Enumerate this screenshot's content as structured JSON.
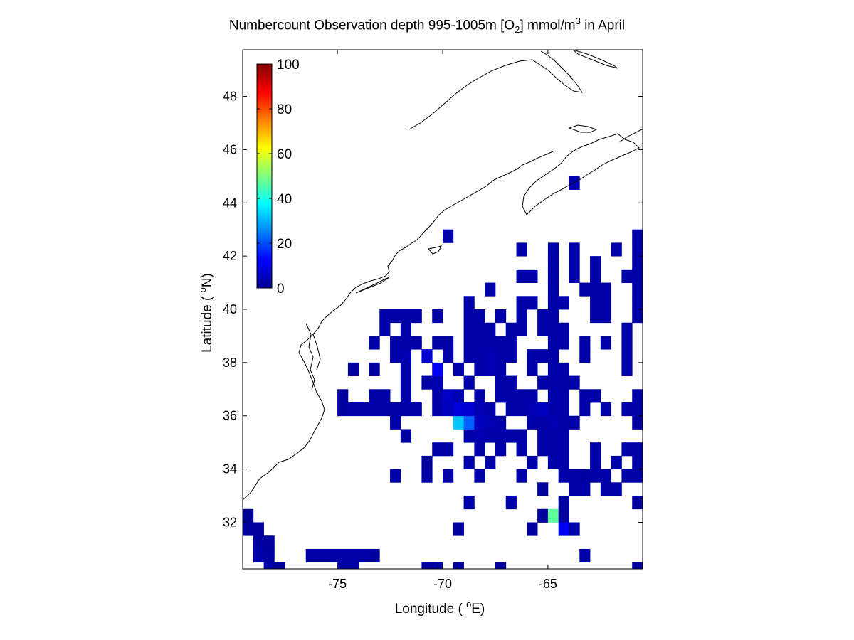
{
  "chart_data": {
    "type": "heatmap",
    "title": {
      "prefix": "Numbercount Observation depth 995-1005m [O",
      "sub": "2",
      "middle": "] mmol/m",
      "sup": "3",
      "suffix": " in April"
    },
    "xlabel": "Longitude ( ",
    "xlabel_deg": "o",
    "xlabel_unit": "E)",
    "ylabel": "Latitude ( ",
    "ylabel_deg": "o",
    "ylabel_unit": "N)",
    "xlim": [
      -79.5,
      -60.5
    ],
    "ylim": [
      30.25,
      49.75
    ],
    "xticks": [
      -75,
      -70,
      -65
    ],
    "yticks": [
      32,
      34,
      36,
      38,
      40,
      42,
      44,
      46,
      48
    ],
    "cell_size_deg": 0.5,
    "colorbar": {
      "min": 0,
      "max": 100,
      "ticks": [
        0,
        20,
        40,
        60,
        80,
        100
      ],
      "colormap": "jet",
      "placement": "upper-left inside axes"
    },
    "cells": [
      [
        -79.25,
        32.25,
        2
      ],
      [
        -79.25,
        31.75,
        3
      ],
      [
        -78.75,
        31.75,
        3
      ],
      [
        -78.75,
        31.25,
        3
      ],
      [
        -78.25,
        31.25,
        3
      ],
      [
        -78.75,
        30.75,
        4
      ],
      [
        -78.25,
        30.75,
        3
      ],
      [
        -78.25,
        30.25,
        4
      ],
      [
        -77.75,
        30.25,
        3
      ],
      [
        -76.25,
        30.75,
        4
      ],
      [
        -75.75,
        30.75,
        4
      ],
      [
        -75.25,
        30.75,
        4
      ],
      [
        -74.75,
        30.75,
        4
      ],
      [
        -74.25,
        30.75,
        4
      ],
      [
        -73.75,
        30.75,
        4
      ],
      [
        -73.25,
        30.75,
        3
      ],
      [
        -74.75,
        30.25,
        4
      ],
      [
        -74.25,
        30.25,
        4
      ],
      [
        -70.75,
        30.25,
        3
      ],
      [
        -70.25,
        30.25,
        3
      ],
      [
        -69.25,
        30.25,
        3
      ],
      [
        -67.25,
        30.25,
        3
      ],
      [
        -63.25,
        30.75,
        4
      ],
      [
        -60.75,
        30.25,
        3
      ],
      [
        -69.25,
        31.75,
        3
      ],
      [
        -65.75,
        31.75,
        3
      ],
      [
        -64.25,
        31.75,
        12
      ],
      [
        -63.75,
        31.75,
        4
      ],
      [
        -65.25,
        32.25,
        3
      ],
      [
        -64.75,
        32.25,
        47
      ],
      [
        -64.25,
        32.25,
        3
      ],
      [
        -68.75,
        32.75,
        4
      ],
      [
        -66.75,
        32.75,
        4
      ],
      [
        -64.25,
        32.75,
        3
      ],
      [
        -60.75,
        32.75,
        3
      ],
      [
        -65.25,
        33.25,
        3
      ],
      [
        -63.75,
        33.25,
        4
      ],
      [
        -63.25,
        33.25,
        4
      ],
      [
        -62.25,
        33.25,
        4
      ],
      [
        -61.75,
        33.25,
        4
      ],
      [
        -72.25,
        33.75,
        4
      ],
      [
        -70.75,
        33.75,
        4
      ],
      [
        -69.75,
        33.75,
        4
      ],
      [
        -68.25,
        33.75,
        4
      ],
      [
        -66.25,
        33.75,
        4
      ],
      [
        -64.25,
        33.75,
        4
      ],
      [
        -63.75,
        33.75,
        4
      ],
      [
        -63.25,
        33.75,
        3
      ],
      [
        -62.75,
        33.75,
        4
      ],
      [
        -62.25,
        33.75,
        4
      ],
      [
        -61.25,
        33.75,
        4
      ],
      [
        -60.75,
        33.75,
        4
      ],
      [
        -70.75,
        34.25,
        3
      ],
      [
        -68.75,
        34.25,
        4
      ],
      [
        -67.75,
        34.25,
        4
      ],
      [
        -65.75,
        34.25,
        4
      ],
      [
        -64.75,
        34.25,
        4
      ],
      [
        -64.25,
        34.25,
        4
      ],
      [
        -62.75,
        34.25,
        4
      ],
      [
        -61.75,
        34.25,
        4
      ],
      [
        -60.75,
        34.25,
        4
      ],
      [
        -70.25,
        34.75,
        4
      ],
      [
        -69.75,
        34.75,
        4
      ],
      [
        -68.25,
        34.75,
        4
      ],
      [
        -67.25,
        34.75,
        4
      ],
      [
        -66.25,
        34.75,
        4
      ],
      [
        -65.25,
        34.75,
        4
      ],
      [
        -64.75,
        34.75,
        4
      ],
      [
        -64.25,
        34.75,
        4
      ],
      [
        -62.75,
        34.75,
        4
      ],
      [
        -61.25,
        34.75,
        4
      ],
      [
        -60.75,
        34.75,
        4
      ],
      [
        -71.75,
        35.25,
        3
      ],
      [
        -68.75,
        35.25,
        4
      ],
      [
        -68.25,
        35.25,
        5
      ],
      [
        -67.75,
        35.25,
        4
      ],
      [
        -67.25,
        35.25,
        4
      ],
      [
        -66.75,
        35.25,
        4
      ],
      [
        -66.25,
        35.25,
        4
      ],
      [
        -65.25,
        35.25,
        4
      ],
      [
        -64.75,
        35.25,
        4
      ],
      [
        -64.25,
        35.25,
        4
      ],
      [
        -72.25,
        35.75,
        4
      ],
      [
        -69.25,
        35.75,
        32
      ],
      [
        -68.75,
        35.75,
        22
      ],
      [
        -68.25,
        35.75,
        6
      ],
      [
        -67.75,
        35.75,
        5
      ],
      [
        -67.25,
        35.75,
        4
      ],
      [
        -65.75,
        35.75,
        4
      ],
      [
        -65.25,
        35.75,
        4
      ],
      [
        -64.75,
        35.75,
        5
      ],
      [
        -64.25,
        35.75,
        4
      ],
      [
        -63.75,
        35.75,
        4
      ],
      [
        -60.75,
        35.75,
        3
      ],
      [
        -74.75,
        36.25,
        3
      ],
      [
        -74.25,
        36.25,
        4
      ],
      [
        -73.75,
        36.25,
        4
      ],
      [
        -73.25,
        36.25,
        4
      ],
      [
        -72.75,
        36.25,
        4
      ],
      [
        -72.25,
        36.25,
        4
      ],
      [
        -71.75,
        36.25,
        4
      ],
      [
        -71.25,
        36.25,
        4
      ],
      [
        -70.25,
        36.25,
        4
      ],
      [
        -69.75,
        36.25,
        6
      ],
      [
        -69.25,
        36.25,
        9
      ],
      [
        -68.75,
        36.25,
        8
      ],
      [
        -68.25,
        36.25,
        5
      ],
      [
        -67.75,
        36.25,
        4
      ],
      [
        -66.75,
        36.25,
        4
      ],
      [
        -66.25,
        36.25,
        4
      ],
      [
        -65.75,
        36.25,
        5
      ],
      [
        -65.25,
        36.25,
        6
      ],
      [
        -64.75,
        36.25,
        4
      ],
      [
        -64.25,
        36.25,
        4
      ],
      [
        -63.25,
        36.25,
        4
      ],
      [
        -62.25,
        36.25,
        4
      ],
      [
        -61.25,
        36.25,
        4
      ],
      [
        -60.75,
        36.25,
        4
      ],
      [
        -74.75,
        36.75,
        3
      ],
      [
        -73.25,
        36.75,
        4
      ],
      [
        -72.75,
        36.75,
        4
      ],
      [
        -71.75,
        36.75,
        4
      ],
      [
        -70.25,
        36.75,
        4
      ],
      [
        -69.75,
        36.75,
        7
      ],
      [
        -69.25,
        36.75,
        5
      ],
      [
        -68.25,
        36.75,
        4
      ],
      [
        -67.25,
        36.75,
        4
      ],
      [
        -66.75,
        36.75,
        4
      ],
      [
        -66.25,
        36.75,
        4
      ],
      [
        -65.75,
        36.75,
        4
      ],
      [
        -64.75,
        36.75,
        4
      ],
      [
        -64.25,
        36.75,
        4
      ],
      [
        -63.25,
        36.75,
        4
      ],
      [
        -62.75,
        36.75,
        4
      ],
      [
        -60.75,
        36.75,
        4
      ],
      [
        -71.75,
        37.25,
        4
      ],
      [
        -70.75,
        37.25,
        4
      ],
      [
        -70.25,
        37.25,
        5
      ],
      [
        -68.75,
        37.25,
        4
      ],
      [
        -67.25,
        37.25,
        4
      ],
      [
        -66.75,
        37.25,
        4
      ],
      [
        -65.25,
        37.25,
        4
      ],
      [
        -64.75,
        37.25,
        4
      ],
      [
        -64.25,
        37.25,
        4
      ],
      [
        -63.75,
        37.25,
        4
      ],
      [
        -74.25,
        37.75,
        3
      ],
      [
        -73.25,
        37.75,
        3
      ],
      [
        -71.75,
        37.75,
        4
      ],
      [
        -70.25,
        37.75,
        12
      ],
      [
        -69.25,
        37.75,
        4
      ],
      [
        -68.25,
        37.75,
        4
      ],
      [
        -67.75,
        37.75,
        5
      ],
      [
        -67.25,
        37.75,
        4
      ],
      [
        -65.75,
        37.75,
        4
      ],
      [
        -64.75,
        37.75,
        4
      ],
      [
        -64.25,
        37.75,
        4
      ],
      [
        -61.25,
        37.75,
        4
      ],
      [
        -72.25,
        38.25,
        4
      ],
      [
        -71.75,
        38.25,
        5
      ],
      [
        -70.75,
        38.25,
        8
      ],
      [
        -69.75,
        38.25,
        4
      ],
      [
        -68.75,
        38.25,
        4
      ],
      [
        -68.25,
        38.25,
        4
      ],
      [
        -67.75,
        38.25,
        5
      ],
      [
        -67.25,
        38.25,
        4
      ],
      [
        -66.75,
        38.25,
        4
      ],
      [
        -65.75,
        38.25,
        4
      ],
      [
        -65.25,
        38.25,
        4
      ],
      [
        -64.75,
        38.25,
        4
      ],
      [
        -63.25,
        38.25,
        4
      ],
      [
        -61.25,
        38.25,
        4
      ],
      [
        -73.25,
        38.75,
        4
      ],
      [
        -72.25,
        38.75,
        4
      ],
      [
        -71.75,
        38.75,
        4
      ],
      [
        -71.25,
        38.75,
        4
      ],
      [
        -70.25,
        38.75,
        4
      ],
      [
        -69.75,
        38.75,
        4
      ],
      [
        -68.75,
        38.75,
        4
      ],
      [
        -68.25,
        38.75,
        4
      ],
      [
        -67.75,
        38.75,
        4
      ],
      [
        -67.25,
        38.75,
        4
      ],
      [
        -66.75,
        38.75,
        4
      ],
      [
        -64.75,
        38.75,
        4
      ],
      [
        -64.25,
        38.75,
        4
      ],
      [
        -63.25,
        38.75,
        4
      ],
      [
        -62.25,
        38.75,
        4
      ],
      [
        -61.25,
        38.75,
        4
      ],
      [
        -72.75,
        39.25,
        4
      ],
      [
        -71.75,
        39.25,
        4
      ],
      [
        -68.75,
        39.25,
        4
      ],
      [
        -68.25,
        39.25,
        4
      ],
      [
        -67.75,
        39.25,
        4
      ],
      [
        -66.75,
        39.25,
        4
      ],
      [
        -66.25,
        39.25,
        4
      ],
      [
        -65.25,
        39.25,
        4
      ],
      [
        -64.75,
        39.25,
        4
      ],
      [
        -64.25,
        39.25,
        4
      ],
      [
        -61.25,
        39.25,
        4
      ],
      [
        -72.75,
        39.75,
        4
      ],
      [
        -72.25,
        39.75,
        4
      ],
      [
        -71.75,
        39.75,
        4
      ],
      [
        -71.25,
        39.75,
        4
      ],
      [
        -70.25,
        39.75,
        4
      ],
      [
        -68.75,
        39.75,
        4
      ],
      [
        -68.25,
        39.75,
        4
      ],
      [
        -67.25,
        39.75,
        4
      ],
      [
        -66.25,
        39.75,
        4
      ],
      [
        -65.25,
        39.75,
        4
      ],
      [
        -64.75,
        39.75,
        4
      ],
      [
        -62.75,
        39.75,
        4
      ],
      [
        -62.25,
        39.75,
        4
      ],
      [
        -60.75,
        39.75,
        4
      ],
      [
        -68.75,
        40.25,
        4
      ],
      [
        -66.25,
        40.25,
        4
      ],
      [
        -65.75,
        40.25,
        4
      ],
      [
        -64.75,
        40.25,
        4
      ],
      [
        -64.25,
        40.25,
        4
      ],
      [
        -62.75,
        40.25,
        4
      ],
      [
        -62.25,
        40.25,
        4
      ],
      [
        -60.75,
        40.25,
        4
      ],
      [
        -67.75,
        40.75,
        4
      ],
      [
        -64.75,
        40.75,
        4
      ],
      [
        -63.25,
        40.75,
        4
      ],
      [
        -62.75,
        40.75,
        4
      ],
      [
        -62.25,
        40.75,
        4
      ],
      [
        -60.75,
        40.75,
        4
      ],
      [
        -66.25,
        41.25,
        4
      ],
      [
        -65.75,
        41.25,
        4
      ],
      [
        -64.75,
        41.25,
        4
      ],
      [
        -63.75,
        41.25,
        4
      ],
      [
        -62.75,
        41.25,
        4
      ],
      [
        -61.25,
        41.25,
        4
      ],
      [
        -60.75,
        41.25,
        4
      ],
      [
        -64.75,
        41.75,
        4
      ],
      [
        -63.75,
        41.75,
        4
      ],
      [
        -62.75,
        41.75,
        4
      ],
      [
        -60.75,
        41.75,
        4
      ],
      [
        -66.25,
        42.25,
        4
      ],
      [
        -64.75,
        42.25,
        4
      ],
      [
        -63.75,
        42.25,
        4
      ],
      [
        -61.75,
        42.25,
        4
      ],
      [
        -60.75,
        42.25,
        4
      ],
      [
        -69.75,
        42.75,
        4
      ],
      [
        -60.75,
        42.75,
        4
      ],
      [
        -63.75,
        44.75,
        5
      ]
    ]
  }
}
